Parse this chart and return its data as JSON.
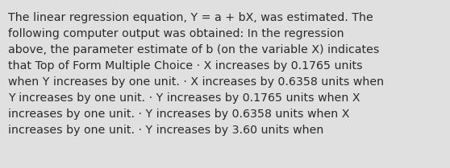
{
  "background_color": "#e0e0e0",
  "text_color": "#2a2a2a",
  "font_size": 10.2,
  "text": "The linear regression equation, Y = a + bX, was estimated. The\nfollowing computer output was obtained: In the regression\nabove, the parameter estimate of b (on the variable X) indicates\nthat Top of Form Multiple Choice · X increases by 0.1765 units\nwhen Y increases by one unit. · X increases by 0.6358 units when\nY increases by one unit. · Y increases by 0.1765 units when X\nincreases by one unit. · Y increases by 0.6358 units when X\nincreases by one unit. · Y increases by 3.60 units when",
  "fig_width": 5.58,
  "fig_height": 2.09,
  "dpi": 100
}
